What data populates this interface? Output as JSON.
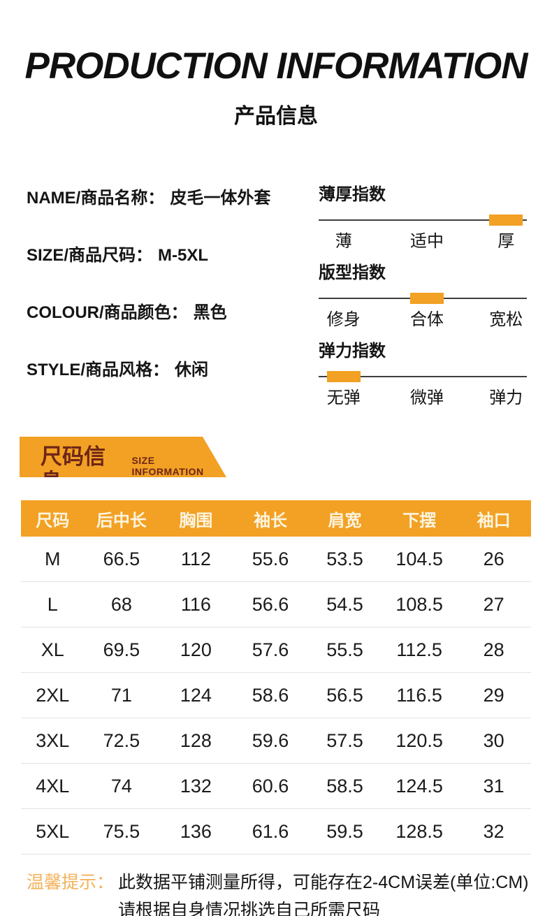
{
  "header": {
    "title_en": "PRODUCTION INFORMATION",
    "title_zh": "产品信息"
  },
  "product_info": {
    "fields": [
      {
        "label": "NAME/商品名称：",
        "value": "皮毛一体外套"
      },
      {
        "label": "SIZE/商品尺码：",
        "value": "M-5XL"
      },
      {
        "label": "COLOUR/商品颜色：",
        "value": "黑色"
      },
      {
        "label": "STYLE/商品风格：",
        "value": "休闲"
      }
    ]
  },
  "indices": [
    {
      "title": "薄厚指数",
      "options": [
        "薄",
        "适中",
        "厚"
      ],
      "selected_index": 2,
      "selected_label": "厚"
    },
    {
      "title": "版型指数",
      "options": [
        "修身",
        "合体",
        "宽松"
      ],
      "selected_index": 1,
      "selected_label": "合体"
    },
    {
      "title": "弹力指数",
      "options": [
        "无弹",
        "微弹",
        "弹力"
      ],
      "selected_index": 0,
      "selected_label": "无弹"
    }
  ],
  "size_banner": {
    "title_zh": "尺码信息",
    "title_en": "SIZE INFORMATION"
  },
  "size_table": {
    "columns": [
      "尺码",
      "后中长",
      "胸围",
      "袖长",
      "肩宽",
      "下摆",
      "袖口"
    ],
    "rows": [
      [
        "M",
        "66.5",
        "112",
        "55.6",
        "53.5",
        "104.5",
        "26"
      ],
      [
        "L",
        "68",
        "116",
        "56.6",
        "54.5",
        "108.5",
        "27"
      ],
      [
        "XL",
        "69.5",
        "120",
        "57.6",
        "55.5",
        "112.5",
        "28"
      ],
      [
        "2XL",
        "71",
        "124",
        "58.6",
        "56.5",
        "116.5",
        "29"
      ],
      [
        "3XL",
        "72.5",
        "128",
        "59.6",
        "57.5",
        "120.5",
        "30"
      ],
      [
        "4XL",
        "74",
        "132",
        "60.6",
        "58.5",
        "124.5",
        "31"
      ],
      [
        "5XL",
        "75.5",
        "136",
        "61.6",
        "59.5",
        "128.5",
        "32"
      ]
    ],
    "unit": "CM"
  },
  "footer": {
    "tip_label": "温馨提示：",
    "line1": "此数据平铺测量所得，可能存在2-4CM误差(单位:CM)",
    "line2": "请根据自身情况挑选自己所需尺码"
  },
  "colors": {
    "accent": "#F2A124",
    "banner_text": "#6E2618",
    "header_text": "#FCF4DF",
    "tip": "#F2B25A"
  }
}
